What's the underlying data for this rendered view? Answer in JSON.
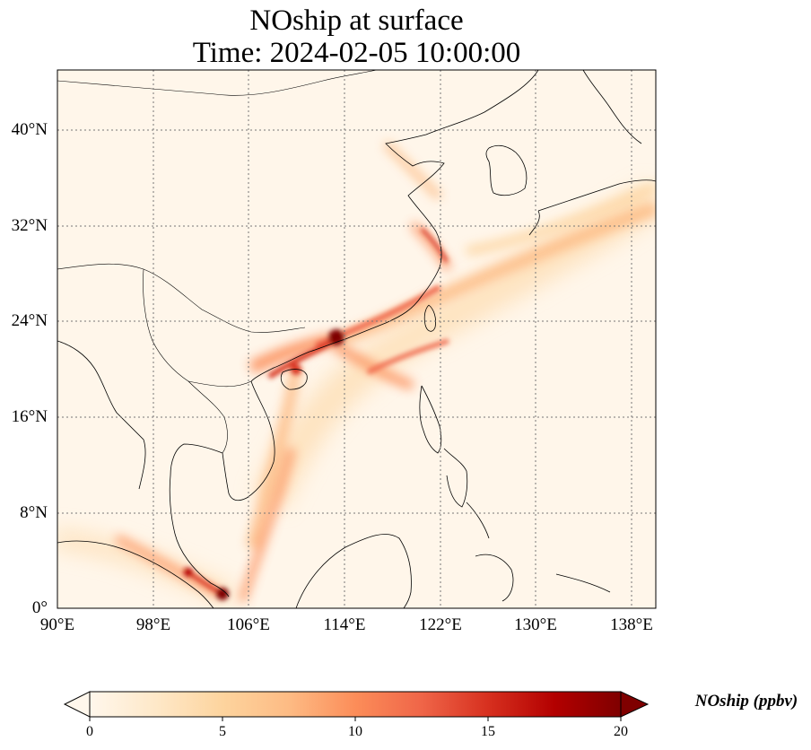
{
  "map": {
    "title_line1": "NOship at surface",
    "title_line2": "Time: 2024-02-05 10:00:00",
    "variable": "NOship",
    "level": "surface",
    "time": "2024-02-05 10:00:00",
    "extent": {
      "lon_min": 90,
      "lon_max": 140,
      "lat_min": 0,
      "lat_max": 45
    },
    "gridlines": true,
    "lat_ticks": [
      {
        "value": 40,
        "label": "40°N"
      },
      {
        "value": 32,
        "label": "32°N"
      },
      {
        "value": 24,
        "label": "24°N"
      },
      {
        "value": 16,
        "label": "16°N"
      },
      {
        "value": 8,
        "label": "8°N"
      },
      {
        "value": 0,
        "label": "0°"
      }
    ],
    "lon_ticks": [
      {
        "value": 90,
        "label": "90°E"
      },
      {
        "value": 98,
        "label": "98°E"
      },
      {
        "value": 106,
        "label": "106°E"
      },
      {
        "value": 114,
        "label": "114°E"
      },
      {
        "value": 122,
        "label": "122°E"
      },
      {
        "value": 130,
        "label": "130°E"
      },
      {
        "value": 138,
        "label": "138°E"
      }
    ]
  },
  "colorbar": {
    "label": "NOship (ppbv)",
    "min": 0,
    "max": 20,
    "extend": "both",
    "colormap": "OrRd",
    "ticks": [
      {
        "value": 0,
        "label": "0"
      },
      {
        "value": 5,
        "label": "5"
      },
      {
        "value": 10,
        "label": "10"
      },
      {
        "value": 15,
        "label": "15"
      },
      {
        "value": 20,
        "label": "20"
      }
    ],
    "colors": [
      "#fff7ec",
      "#fee8c8",
      "#fdd49e",
      "#fdbb84",
      "#fc8d59",
      "#ef6548",
      "#d7301f",
      "#b30000",
      "#7f0000"
    ]
  }
}
